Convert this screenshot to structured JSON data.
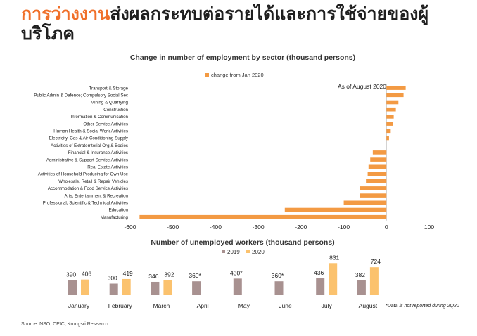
{
  "headline": {
    "highlight": "การว่างงาน",
    "rest": "ส่งผลกระทบต่อรายได้และการใช้จ่ายของผู้บริโภค"
  },
  "source": "Source: NSO, CEIC, Krungsri Research",
  "colors": {
    "accent": "#f0702a",
    "bar_orange": "#f39a43",
    "bar_2019": "#a89190",
    "bar_2020": "#fbc26e"
  },
  "chart_data": [
    {
      "type": "bar",
      "orientation": "horizontal",
      "title": "Change in number of employment by sector (thousand persons)",
      "annotation": "As of August 2020",
      "series": [
        {
          "name": "change from Jan 2020"
        }
      ],
      "categories": [
        "Transport & Storage",
        "Public Admin & Defence; Compulsory Social Sec",
        "Mining & Quarrying",
        "Construction",
        "Information & Communication",
        "Other Service Activities",
        "Human Health & Social Work Activities",
        "Electricity, Gas & Air Conditioning Supply",
        "Activities of Extraterritorial Org & Bodies",
        "Financial & Insurance Activities",
        "Administrative & Support Service Activities",
        "Real Estate Activities",
        "Activities of Household Producing for Own Use",
        "Wholesale, Retail & Repair Vehicles",
        "Accommodation & Food Service Activities",
        "Arts, Entertainment & Recreation",
        "Professional, Scientific & Technical Activities",
        "Education",
        "Manufacturing"
      ],
      "values": [
        45,
        40,
        28,
        22,
        17,
        16,
        10,
        6,
        0,
        -32,
        -38,
        -42,
        -44,
        -48,
        -62,
        -63,
        -100,
        -238,
        -578
      ],
      "xlim": [
        -600,
        100
      ],
      "xticks": [
        "-600",
        "-500",
        "-400",
        "-300",
        "-200",
        "-100",
        "0",
        "100"
      ]
    },
    {
      "type": "bar",
      "title": "Number of unemployed workers (thousand persons)",
      "categories": [
        "January",
        "February",
        "March",
        "April",
        "May",
        "June",
        "July",
        "August"
      ],
      "series": [
        {
          "name": "2019",
          "values": [
            390,
            300,
            346,
            360,
            430,
            360,
            436,
            382
          ],
          "labels": [
            "390",
            "300",
            "346",
            "360*",
            "430*",
            "360*",
            "436",
            "382"
          ]
        },
        {
          "name": "2020",
          "values": [
            406,
            419,
            392,
            null,
            null,
            null,
            831,
            724
          ],
          "labels": [
            "406",
            "419",
            "392",
            "",
            "",
            "",
            "831",
            "724"
          ]
        }
      ],
      "note": "*Data is not reported during 2Q20"
    }
  ]
}
